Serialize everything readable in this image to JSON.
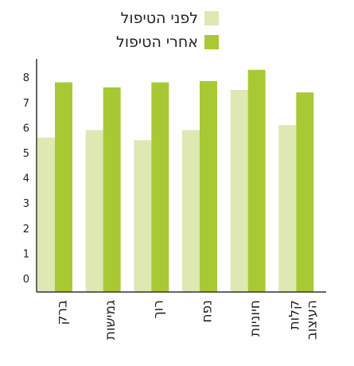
{
  "chart_data": {
    "type": "bar",
    "categories": [
      "ברק",
      "גמישות",
      "רוך",
      "נפח",
      "חיוניות",
      "קלות העיצוב"
    ],
    "series": [
      {
        "name": "לפני הטיפול",
        "color": "#dde8b3",
        "values": [
          5.6,
          5.9,
          5.5,
          5.9,
          7.5,
          6.1
        ]
      },
      {
        "name": "אחרי הטיפול",
        "color": "#a8c934",
        "values": [
          7.8,
          7.6,
          7.8,
          7.85,
          8.3,
          7.4
        ]
      }
    ],
    "ylim": [
      -0.5,
      8.6
    ],
    "yticks": [
      0,
      1,
      2,
      3,
      4,
      5,
      6,
      7,
      8
    ],
    "legend": "top",
    "grid": false
  }
}
